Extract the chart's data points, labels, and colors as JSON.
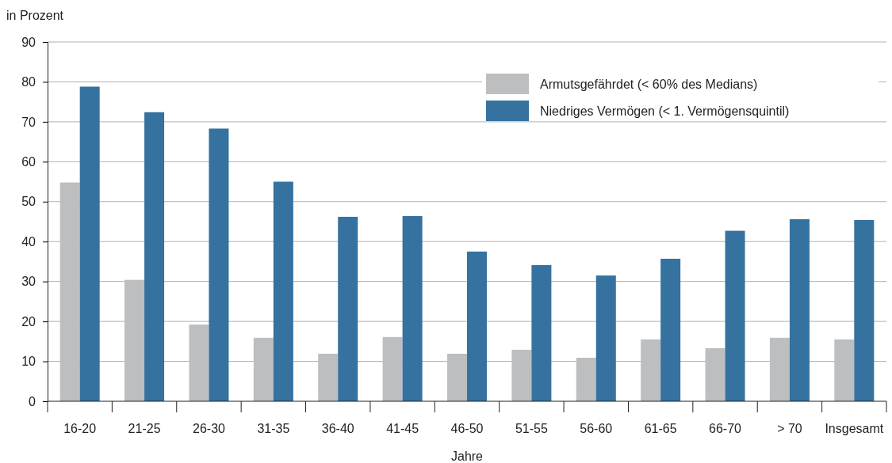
{
  "chart_data": {
    "type": "bar",
    "ylabel": "in Prozent",
    "xlabel": "Jahre",
    "categories": [
      "16-20",
      "21-25",
      "26-30",
      "31-35",
      "36-40",
      "41-45",
      "46-50",
      "51-55",
      "56-60",
      "61-65",
      "66-70",
      "> 70",
      "Insgesamt"
    ],
    "series": [
      {
        "name": "Armutsgefährdet  (< 60% des Medians)",
        "color": "#bcbec0",
        "values": [
          54.8,
          30.4,
          19.2,
          15.9,
          11.9,
          16.1,
          11.9,
          12.9,
          10.9,
          15.5,
          13.3,
          15.9,
          15.5
        ]
      },
      {
        "name": "Niedriges Vermögen (< 1. Vermögensquintil)",
        "color": "#3572a0",
        "values": [
          78.8,
          72.4,
          68.3,
          55.0,
          46.2,
          46.4,
          37.5,
          34.1,
          31.5,
          35.7,
          42.7,
          45.6,
          45.4
        ]
      }
    ],
    "ylim": [
      0,
      90
    ],
    "yticks": [
      0,
      10,
      20,
      30,
      40,
      50,
      60,
      70,
      80,
      90
    ],
    "grid": "y",
    "legend": "top right"
  }
}
